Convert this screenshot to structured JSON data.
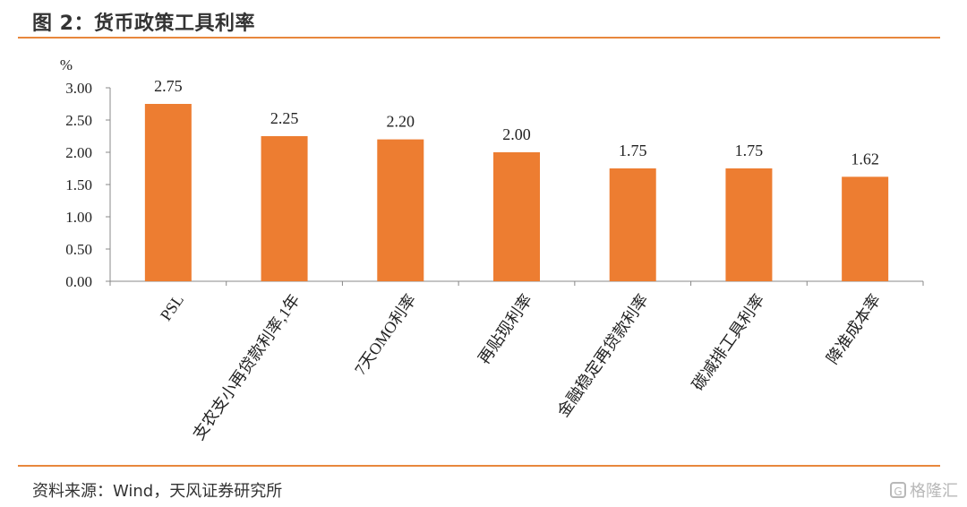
{
  "figure": {
    "title": "图 2：货币政策工具利率",
    "source": "资料来源：Wind，天风证券研究所",
    "watermark": "格隆汇"
  },
  "chart_data": {
    "type": "bar",
    "title": "",
    "ylabel": "%",
    "xlabel": "",
    "ylim": [
      0,
      3
    ],
    "yticks": [
      "0.00",
      "0.50",
      "1.00",
      "1.50",
      "2.00",
      "2.50",
      "3.00"
    ],
    "categories": [
      "PSL",
      "支农支小再贷款利率,1年",
      "7天OMO利率",
      "再贴现利率",
      "金融稳定再贷款利率",
      "碳减排工具利率",
      "降准成本率"
    ],
    "values": [
      2.75,
      2.25,
      2.2,
      2.0,
      1.75,
      1.75,
      1.62
    ],
    "data_labels": [
      "2.75",
      "2.25",
      "2.20",
      "2.00",
      "1.75",
      "1.75",
      "1.62"
    ],
    "bar_color": "#ed7d31",
    "grid": false,
    "legend": "none"
  }
}
